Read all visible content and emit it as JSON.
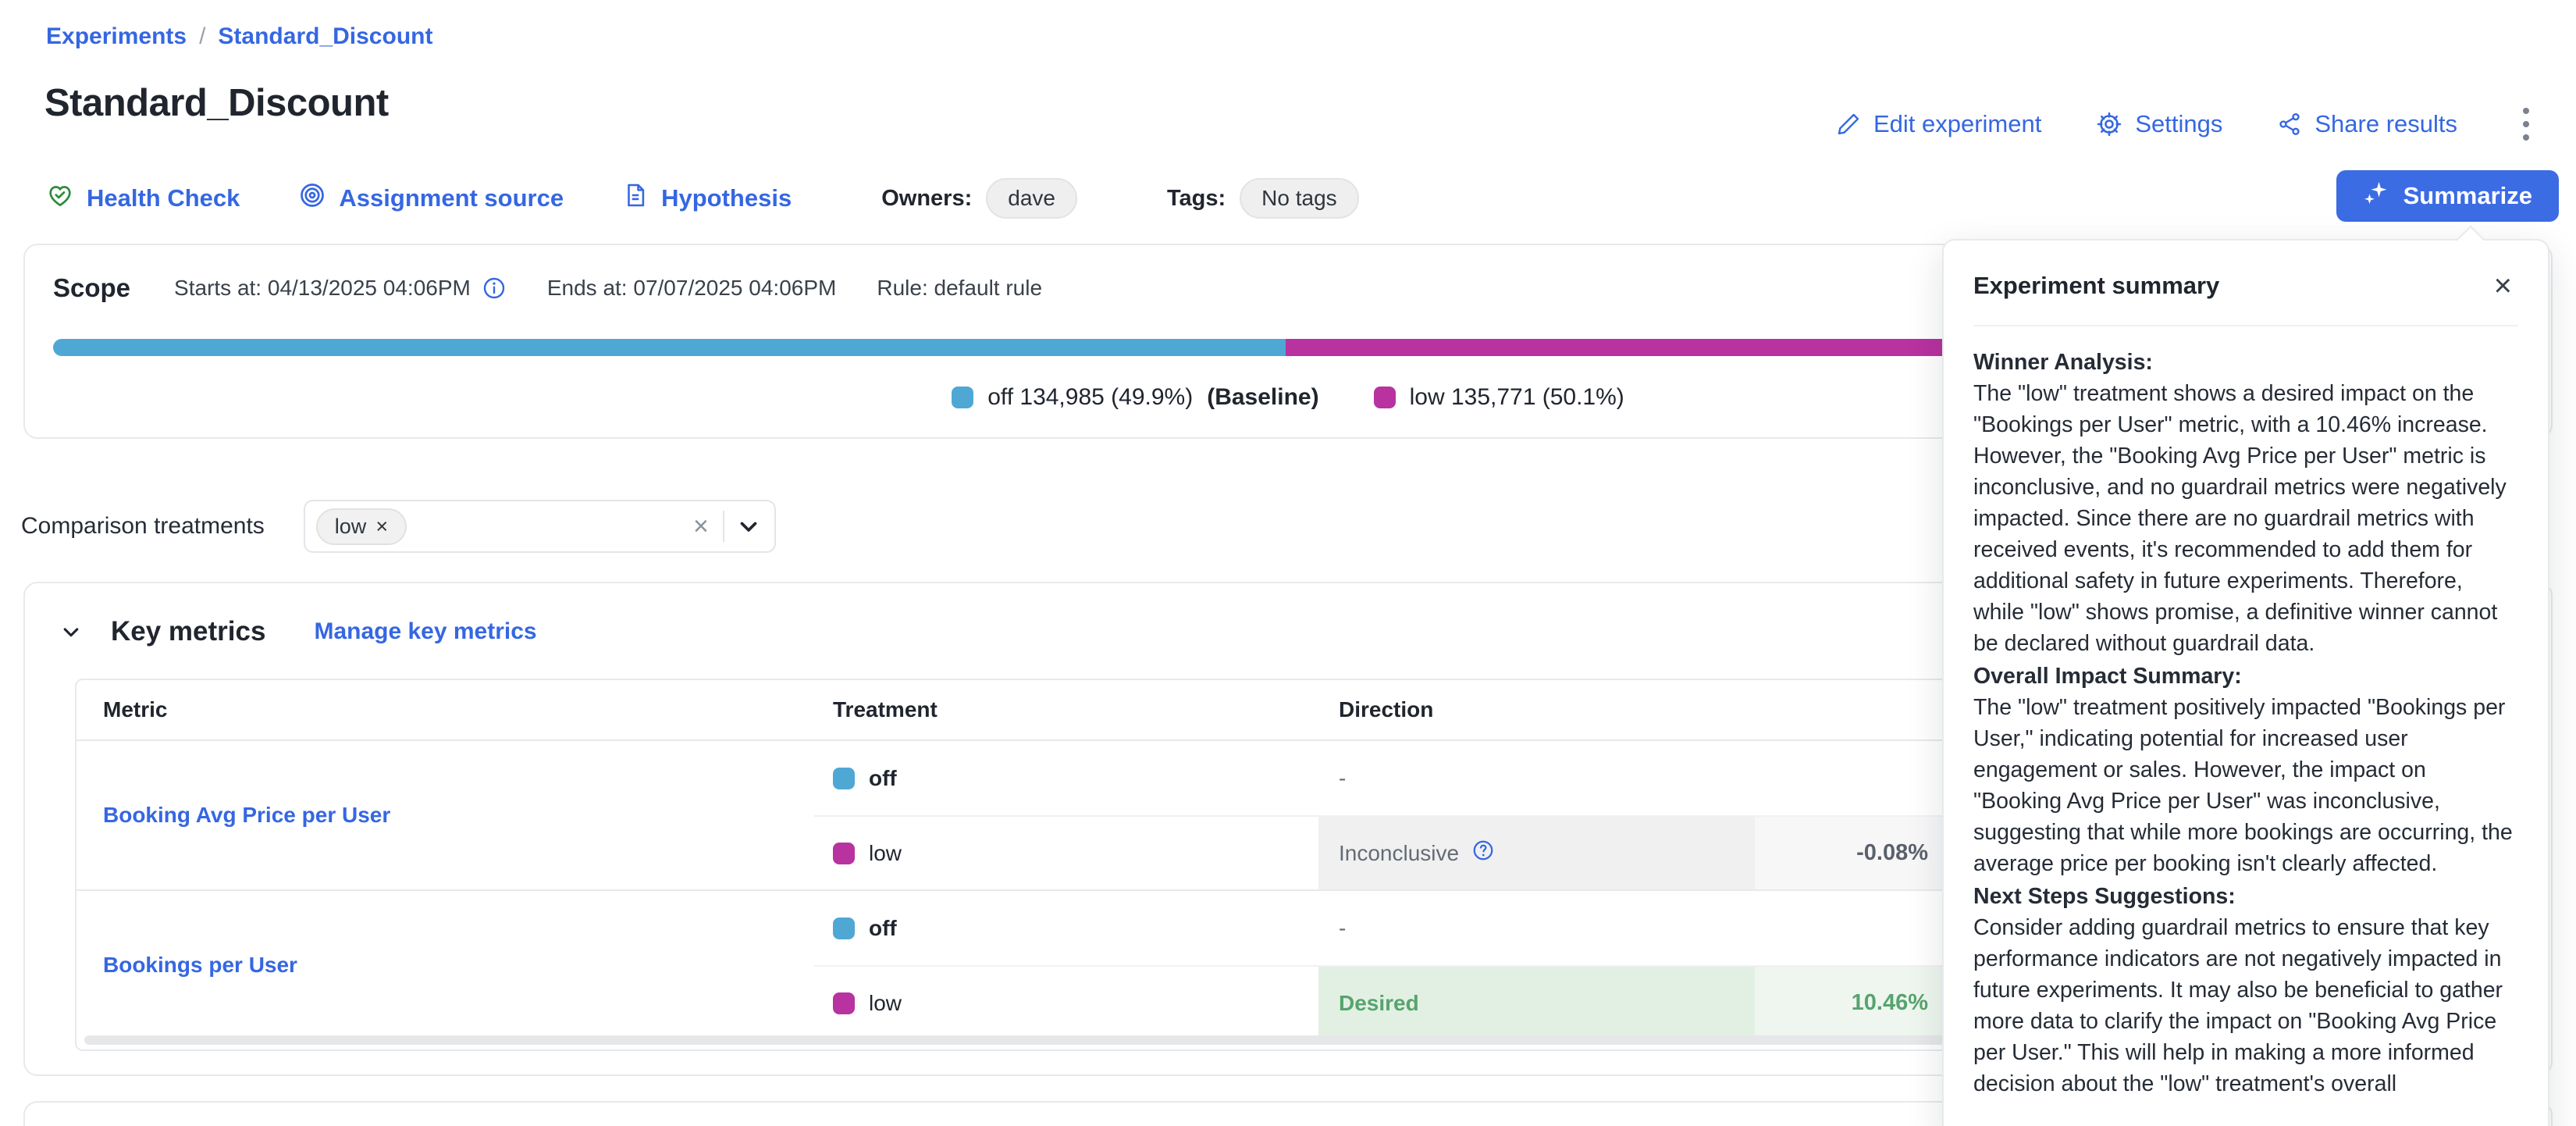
{
  "colors": {
    "accent_blue": "#3567E2",
    "treatment_off": "#4FA8D4",
    "treatment_low": "#B832A0",
    "desired_green": "#57A46D",
    "health_green": "#2E8B3C"
  },
  "breadcrumb": {
    "items": [
      "Experiments",
      "Standard_Discount"
    ],
    "separator": "/"
  },
  "header": {
    "title": "Standard_Discount",
    "actions": {
      "edit": "Edit experiment",
      "settings": "Settings",
      "share": "Share results"
    }
  },
  "meta": {
    "health_check": "Health Check",
    "assignment_source": "Assignment source",
    "hypothesis": "Hypothesis",
    "owners_label": "Owners:",
    "owner": "dave",
    "tags_label": "Tags:",
    "tags_value": "No tags",
    "summarize": "Summarize"
  },
  "scope": {
    "title": "Scope",
    "starts": "Starts at: 04/13/2025 04:06PM",
    "ends": "Ends at: 07/07/2025 04:06PM",
    "rule": "Rule: default rule",
    "allocation": [
      {
        "name": "off",
        "legend": "off 134,985 (49.9%)",
        "baseline_suffix": "(Baseline)",
        "pct": 49.9,
        "color": "#4FA8D4"
      },
      {
        "name": "low",
        "legend": "low 135,771 (50.1%)",
        "baseline_suffix": "",
        "pct": 50.1,
        "color": "#B832A0"
      }
    ]
  },
  "comparison": {
    "label": "Comparison treatments",
    "chip": "low",
    "chip_remove": "×",
    "clear": "×"
  },
  "key_metrics": {
    "title": "Key metrics",
    "manage": "Manage key metrics",
    "columns": {
      "metric": "Metric",
      "treatment": "Treatment",
      "direction": "Direction"
    },
    "rows": [
      {
        "metric": "Booking Avg Price per User",
        "cells": [
          {
            "treatment": "off",
            "color": "#4FA8D4",
            "direction": "-",
            "value": ""
          },
          {
            "treatment": "low",
            "color": "#B832A0",
            "direction": "Inconclusive",
            "value": "-0.08%"
          }
        ]
      },
      {
        "metric": "Bookings per User",
        "cells": [
          {
            "treatment": "off",
            "color": "#4FA8D4",
            "direction": "-",
            "value": ""
          },
          {
            "treatment": "low",
            "color": "#B832A0",
            "direction": "Desired",
            "value": "10.46%"
          }
        ]
      }
    ]
  },
  "summary_panel": {
    "title": "Experiment summary",
    "close": "×",
    "sections": [
      {
        "heading": "Winner Analysis:",
        "body": "The \"low\" treatment shows a desired impact on the \"Bookings per User\" metric, with a 10.46% increase. However, the \"Booking Avg Price per User\" metric is inconclusive, and no guardrail metrics were negatively impacted. Since there are no guardrail metrics with received events, it's recommended to add them for additional safety in future experiments. Therefore, while \"low\" shows promise, a definitive winner cannot be declared without guardrail data."
      },
      {
        "heading": "Overall Impact Summary:",
        "body": "The \"low\" treatment positively impacted \"Bookings per User,\" indicating potential for increased user engagement or sales. However, the impact on \"Booking Avg Price per User\" was inconclusive, suggesting that while more bookings are occurring, the average price per booking isn't clearly affected."
      },
      {
        "heading": "Next Steps Suggestions:",
        "body": "Consider adding guardrail metrics to ensure that key performance indicators are not negatively impacted in future experiments. It may also be beneficial to gather more data to clarify the impact on \"Booking Avg Price per User.\" This will help in making a more informed decision about the \"low\" treatment's overall"
      }
    ]
  }
}
